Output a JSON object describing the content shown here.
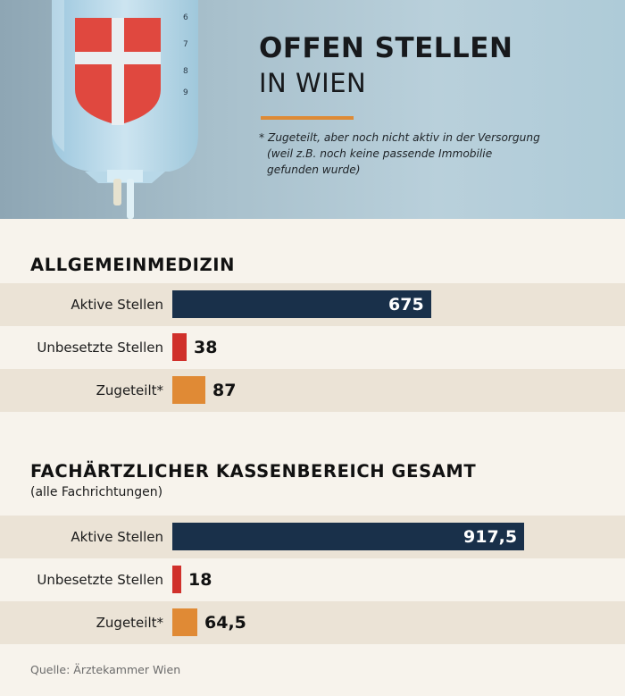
{
  "header": {
    "title_line1": "OFFEN STELLEN",
    "title_line2": "IN WIEN",
    "footnote_line1": "* Zugeteilt, aber noch nicht aktiv in der Versorgung",
    "footnote_line2": "(weil z.B. noch keine passende Immobilie",
    "footnote_line3": "gefunden wurde)",
    "bag_scale_marks": [
      "6",
      "7",
      "8",
      "9"
    ]
  },
  "colors": {
    "active": "#19304a",
    "vacant": "#d0302b",
    "assigned": "#e08a35",
    "accent_rule": "#de8a35",
    "row_shade": "#ebe3d6"
  },
  "chart_data": [
    {
      "type": "bar",
      "orientation": "horizontal",
      "title": "ALLGEMEINMEDIZIN",
      "subtitle": "",
      "categories": [
        "Aktive Stellen",
        "Unbesetzte Stellen",
        "Zugeteilt*"
      ],
      "values": [
        675,
        38,
        87
      ],
      "value_labels": [
        "675",
        "38",
        "87"
      ],
      "bar_colors": [
        "#19304a",
        "#d0302b",
        "#e08a35"
      ]
    },
    {
      "type": "bar",
      "orientation": "horizontal",
      "title": "FACHÄRTZLICHER KASSENBEREICH GESAMT",
      "subtitle": "(alle Fachrichtungen)",
      "categories": [
        "Aktive Stellen",
        "Unbesetzte Stellen",
        "Zugeteilt*"
      ],
      "values": [
        917.5,
        18,
        64.5
      ],
      "value_labels": [
        "917,5",
        "18",
        "64,5"
      ],
      "bar_colors": [
        "#19304a",
        "#d0302b",
        "#e08a35"
      ]
    }
  ],
  "source": "Quelle: Ärztekammer Wien"
}
